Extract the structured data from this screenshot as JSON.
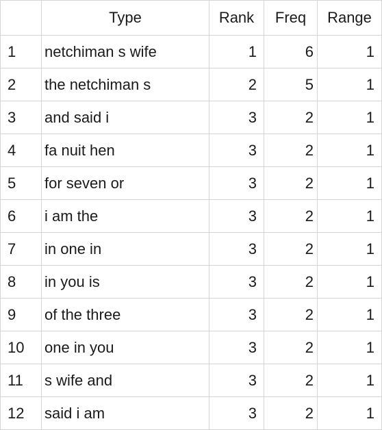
{
  "table": {
    "columns": [
      "",
      "Type",
      "Rank",
      "Freq",
      "Range"
    ],
    "rows": [
      {
        "index": "1",
        "type": "netchiman s wife",
        "rank": "1",
        "freq": "6",
        "range": "1"
      },
      {
        "index": "2",
        "type": "the netchiman s",
        "rank": "2",
        "freq": "5",
        "range": "1"
      },
      {
        "index": "3",
        "type": "and said i",
        "rank": "3",
        "freq": "2",
        "range": "1"
      },
      {
        "index": "4",
        "type": "fa nuit hen",
        "rank": "3",
        "freq": "2",
        "range": "1"
      },
      {
        "index": "5",
        "type": "for seven or",
        "rank": "3",
        "freq": "2",
        "range": "1"
      },
      {
        "index": "6",
        "type": "i am the",
        "rank": "3",
        "freq": "2",
        "range": "1"
      },
      {
        "index": "7",
        "type": "in one in",
        "rank": "3",
        "freq": "2",
        "range": "1"
      },
      {
        "index": "8",
        "type": "in you is",
        "rank": "3",
        "freq": "2",
        "range": "1"
      },
      {
        "index": "9",
        "type": "of the three",
        "rank": "3",
        "freq": "2",
        "range": "1"
      },
      {
        "index": "10",
        "type": "one in you",
        "rank": "3",
        "freq": "2",
        "range": "1"
      },
      {
        "index": "11",
        "type": "s wife and",
        "rank": "3",
        "freq": "2",
        "range": "1"
      },
      {
        "index": "12",
        "type": "said i am",
        "rank": "3",
        "freq": "2",
        "range": "1"
      }
    ]
  }
}
